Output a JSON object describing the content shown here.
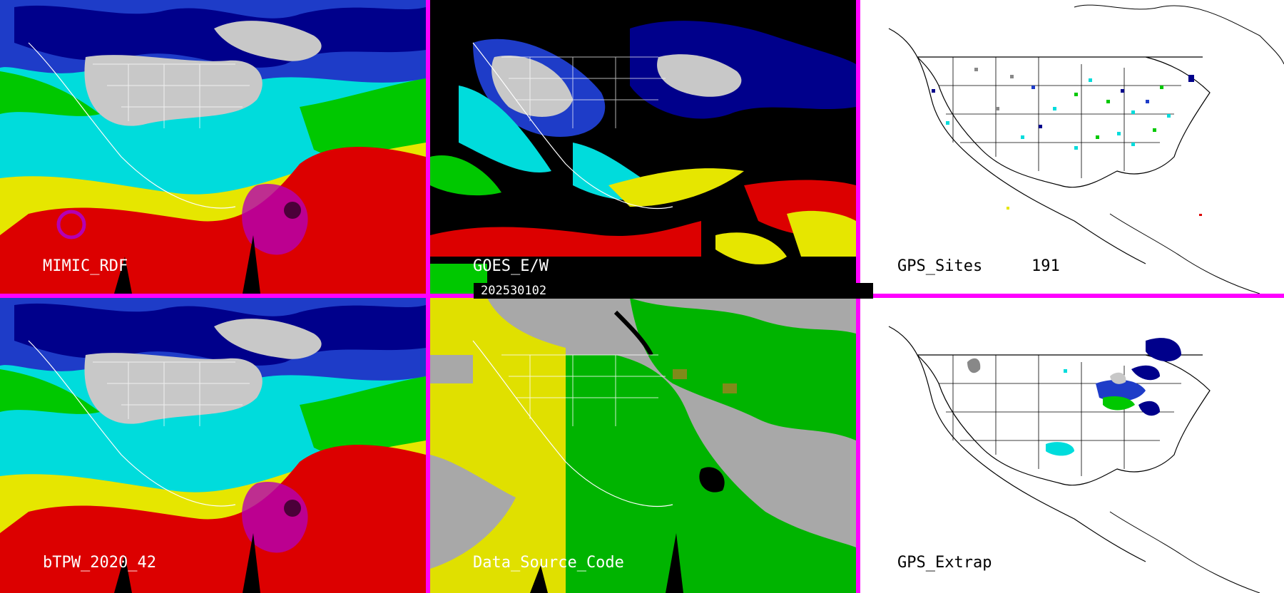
{
  "panels": [
    {
      "label": "MIMIC_RDF"
    },
    {
      "label": "GOES_E/W"
    },
    {
      "label": "GPS_Sites",
      "count": "191"
    },
    {
      "label": "bTPW_2020_42"
    },
    {
      "label": "Data_Source_Code"
    },
    {
      "label": "GPS_Extrap"
    }
  ],
  "timestamp": "202530102",
  "colors": {
    "border": "#ff00ff",
    "gray": "#c8c8c8",
    "navy": "#00008b",
    "blue": "#1e3cc8",
    "cyan": "#00dcdc",
    "green": "#00c800",
    "yellow": "#e6e600",
    "red": "#dc0000",
    "purple": "#b400b4",
    "src_yellow": "#e0e000",
    "src_gray": "#a8a8a8",
    "src_green": "#00b400"
  }
}
